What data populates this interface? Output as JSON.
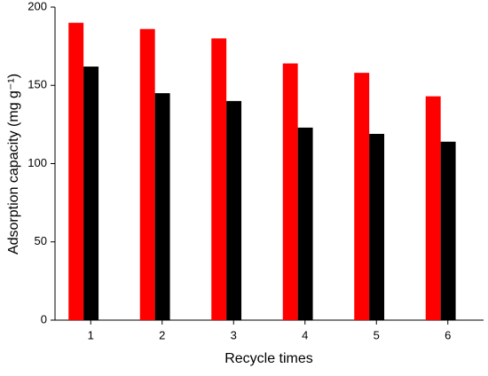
{
  "chart_data": {
    "type": "bar",
    "x_label": "Recycle times",
    "y_label": "Adsorption capacity (mg g⁻¹)",
    "categories": [
      "1",
      "2",
      "3",
      "4",
      "5",
      "6"
    ],
    "series": [
      {
        "color": "#ff0000",
        "values": [
          190,
          186,
          180,
          164,
          158,
          143
        ]
      },
      {
        "color": "#000000",
        "values": [
          162,
          145,
          140,
          123,
          119,
          114
        ]
      }
    ],
    "ylim": [
      0,
      200
    ],
    "yticks": [
      0,
      50,
      100,
      150,
      200
    ]
  }
}
